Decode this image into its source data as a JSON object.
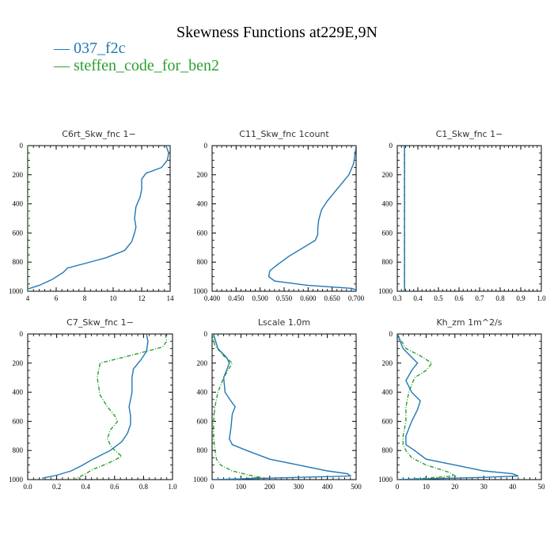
{
  "figure": {
    "title": "Skewness Functions at229E,9N",
    "legend": [
      {
        "label": "— 037_f2c",
        "color": "#1f77b4"
      },
      {
        "label": "— steffen_code_for_ben2",
        "color": "#2ca02c"
      }
    ]
  },
  "chart_data": [
    {
      "type": "line",
      "title": "C6rt_Skw_fnc  1−",
      "xlim": [
        4,
        14
      ],
      "xticks": [
        4,
        6,
        8,
        10,
        12,
        14
      ],
      "xtick_labels": [
        "4",
        "6",
        "8",
        "10",
        "12",
        "14"
      ],
      "ylim": [
        1000,
        0
      ],
      "yticks": [
        0,
        200,
        400,
        600,
        800,
        1000
      ],
      "series": [
        {
          "name": "037_f2c",
          "color": "#1f77b4",
          "dashed": false,
          "x": [
            13.7,
            13.9,
            13.8,
            13.4,
            12.3,
            12.0,
            12.0,
            11.9,
            11.6,
            11.5,
            11.6,
            11.5,
            11.3,
            10.8,
            9.5,
            8.0,
            6.8,
            6.5,
            5.7,
            4.8,
            4.0
          ],
          "y": [
            0,
            50,
            100,
            150,
            190,
            230,
            300,
            350,
            420,
            500,
            560,
            600,
            660,
            720,
            770,
            810,
            840,
            870,
            920,
            960,
            985
          ]
        },
        {
          "name": "steffen_code_for_ben2",
          "color": "#2ca02c",
          "dashed": true,
          "x": [
            4.0,
            4.0
          ],
          "y": [
            0,
            1000
          ]
        }
      ]
    },
    {
      "type": "line",
      "title": "C11_Skw_fnc  1count",
      "xlim": [
        0.4,
        0.7
      ],
      "xticks": [
        0.4,
        0.45,
        0.5,
        0.55,
        0.6,
        0.65,
        0.7
      ],
      "xtick_labels": [
        "0.400",
        "0.450",
        "0.500",
        "0.550",
        "0.600",
        "0.650",
        "0.700"
      ],
      "ylim": [
        1000,
        0
      ],
      "yticks": [
        0,
        200,
        400,
        600,
        800,
        1000
      ],
      "series": [
        {
          "name": "037_f2c",
          "color": "#1f77b4",
          "dashed": false,
          "x": [
            0.7,
            0.695,
            0.685,
            0.66,
            0.64,
            0.628,
            0.622,
            0.62,
            0.62,
            0.615,
            0.59,
            0.56,
            0.535,
            0.52,
            0.518,
            0.53,
            0.6,
            0.69,
            0.7
          ],
          "y": [
            0,
            120,
            200,
            300,
            380,
            440,
            510,
            570,
            610,
            650,
            700,
            760,
            820,
            860,
            900,
            930,
            960,
            980,
            990
          ]
        }
      ]
    },
    {
      "type": "line",
      "title": "C1_Skw_fnc  1−",
      "xlim": [
        0.3,
        1.0
      ],
      "xticks": [
        0.3,
        0.4,
        0.5,
        0.6,
        0.7,
        0.8,
        0.9,
        1.0
      ],
      "xtick_labels": [
        "0.3",
        "0.4",
        "0.5",
        "0.6",
        "0.7",
        "0.8",
        "0.9",
        "1.0"
      ],
      "ylim": [
        1000,
        0
      ],
      "yticks": [
        0,
        200,
        400,
        600,
        800,
        1000
      ],
      "series": [
        {
          "name": "037_f2c",
          "color": "#1f77b4",
          "dashed": false,
          "x": [
            0.335,
            0.335
          ],
          "y": [
            0,
            1000
          ]
        },
        {
          "name": "steffen_code_for_ben2",
          "color": "#2ca02c",
          "dashed": true,
          "x": [
            0.335,
            0.335
          ],
          "y": [
            0,
            1000
          ]
        }
      ]
    },
    {
      "type": "line",
      "title": "C7_Skw_fnc  1−",
      "xlim": [
        0.0,
        1.0
      ],
      "xticks": [
        0.0,
        0.2,
        0.4,
        0.6,
        0.8,
        1.0
      ],
      "xtick_labels": [
        "0.0",
        "0.2",
        "0.4",
        "0.6",
        "0.8",
        "1.0"
      ],
      "ylim": [
        1000,
        0
      ],
      "yticks": [
        0,
        200,
        400,
        600,
        800,
        1000
      ],
      "series": [
        {
          "name": "037_f2c",
          "color": "#1f77b4",
          "dashed": false,
          "x": [
            0.82,
            0.83,
            0.82,
            0.78,
            0.73,
            0.72,
            0.72,
            0.7,
            0.71,
            0.71,
            0.69,
            0.65,
            0.57,
            0.45,
            0.38,
            0.3,
            0.2,
            0.1
          ],
          "y": [
            0,
            50,
            120,
            180,
            240,
            300,
            400,
            500,
            560,
            620,
            680,
            740,
            800,
            860,
            900,
            940,
            970,
            990
          ]
        },
        {
          "name": "steffen_code_for_ben2",
          "color": "#2ca02c",
          "dashed": true,
          "x": [
            0.95,
            0.96,
            0.93,
            0.7,
            0.5,
            0.48,
            0.5,
            0.55,
            0.6,
            0.62,
            0.57,
            0.55,
            0.58,
            0.65,
            0.55,
            0.45,
            0.4,
            0.33
          ],
          "y": [
            0,
            50,
            90,
            150,
            200,
            300,
            420,
            500,
            560,
            600,
            660,
            720,
            780,
            840,
            890,
            930,
            960,
            995
          ]
        }
      ]
    },
    {
      "type": "line",
      "title": "Lscale  1.0m",
      "xlim": [
        0,
        500
      ],
      "xticks": [
        0,
        100,
        200,
        300,
        400,
        500
      ],
      "xtick_labels": [
        "0",
        "100",
        "200",
        "300",
        "400",
        "500"
      ],
      "ylim": [
        1000,
        0
      ],
      "yticks": [
        0,
        200,
        400,
        600,
        800,
        1000
      ],
      "series": [
        {
          "name": "037_f2c",
          "color": "#1f77b4",
          "dashed": false,
          "x": [
            5,
            20,
            50,
            60,
            40,
            45,
            65,
            80,
            70,
            65,
            60,
            70,
            120,
            200,
            300,
            400,
            470,
            480,
            300,
            100,
            10
          ],
          "y": [
            0,
            100,
            160,
            200,
            300,
            400,
            460,
            500,
            550,
            650,
            720,
            760,
            800,
            860,
            900,
            940,
            960,
            975,
            985,
            995,
            1000
          ]
        },
        {
          "name": "steffen_code_for_ben2",
          "color": "#2ca02c",
          "dashed": true,
          "x": [
            0,
            10,
            40,
            70,
            40,
            20,
            10,
            5,
            5,
            10,
            15,
            30,
            70,
            130,
            170,
            100,
            20
          ],
          "y": [
            0,
            80,
            150,
            200,
            300,
            400,
            500,
            600,
            700,
            800,
            860,
            900,
            940,
            970,
            985,
            995,
            1000
          ]
        }
      ]
    },
    {
      "type": "line",
      "title": "Kh_zm  1m^2/s",
      "xlim": [
        0,
        50
      ],
      "xticks": [
        0,
        10,
        20,
        30,
        40,
        50
      ],
      "xtick_labels": [
        "0",
        "10",
        "20",
        "30",
        "40",
        "50"
      ],
      "ylim": [
        1000,
        0
      ],
      "yticks": [
        0,
        200,
        400,
        600,
        800,
        1000
      ],
      "series": [
        {
          "name": "037_f2c",
          "color": "#1f77b4",
          "dashed": false,
          "x": [
            0,
            2,
            5,
            7,
            5,
            3,
            5,
            8,
            7,
            5,
            3,
            3,
            6,
            10,
            20,
            30,
            40,
            42,
            30,
            10,
            0
          ],
          "y": [
            0,
            100,
            160,
            200,
            250,
            320,
            400,
            460,
            520,
            600,
            700,
            760,
            800,
            860,
            900,
            940,
            960,
            975,
            985,
            995,
            1000
          ]
        },
        {
          "name": "steffen_code_for_ben2",
          "color": "#2ca02c",
          "dashed": true,
          "x": [
            0,
            3,
            8,
            12,
            10,
            6,
            4,
            3,
            3,
            2,
            2,
            3,
            5,
            10,
            18,
            20,
            10,
            0
          ],
          "y": [
            0,
            100,
            150,
            200,
            250,
            300,
            400,
            500,
            600,
            700,
            760,
            800,
            850,
            900,
            950,
            975,
            990,
            1000
          ]
        }
      ]
    }
  ]
}
